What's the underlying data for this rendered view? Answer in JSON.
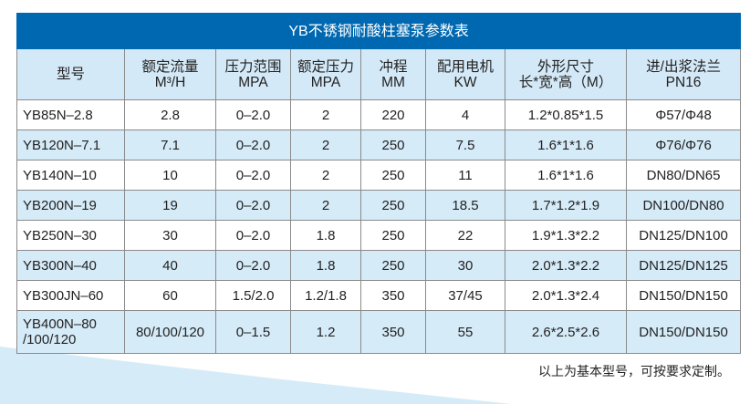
{
  "title": "YB不锈钢耐酸柱塞泵参数表",
  "colors": {
    "title_bg": "#0068b0",
    "header_bg": "#d4e9f7",
    "alt_row_bg": "#d6ebf8"
  },
  "headers": [
    [
      "型号"
    ],
    [
      "额定流量",
      "M³/H"
    ],
    [
      "压力范围",
      "MPA"
    ],
    [
      "额定压力",
      "MPA"
    ],
    [
      "冲程",
      "MM"
    ],
    [
      "配用电机",
      "KW"
    ],
    [
      "外形尺寸",
      "长*宽*高（M）"
    ],
    [
      "进/出浆法兰",
      "PN16"
    ]
  ],
  "rows": [
    [
      "YB85N–2.8",
      "2.8",
      "0–2.0",
      "2",
      "220",
      "4",
      "1.2*0.85*1.5",
      "Φ57/Φ48"
    ],
    [
      "YB120N–7.1",
      "7.1",
      "0–2.0",
      "2",
      "250",
      "7.5",
      "1.6*1*1.6",
      "Φ76/Φ76"
    ],
    [
      "YB140N–10",
      "10",
      "0–2.0",
      "2",
      "250",
      "11",
      "1.6*1*1.6",
      "DN80/DN65"
    ],
    [
      "YB200N–19",
      "19",
      "0–2.0",
      "2",
      "250",
      "18.5",
      "1.7*1.2*1.9",
      "DN100/DN80"
    ],
    [
      "YB250N–30",
      "30",
      "0–2.0",
      "1.8",
      "250",
      "22",
      "1.9*1.3*2.2",
      "DN125/DN100"
    ],
    [
      "YB300N–40",
      "40",
      "0–2.0",
      "1.8",
      "250",
      "30",
      "2.0*1.3*2.2",
      "DN125/DN125"
    ],
    [
      "YB300JN–60",
      "60",
      "1.5/2.0",
      "1.2/1.8",
      "350",
      "37/45",
      "2.0*1.3*2.4",
      "DN150/DN150"
    ],
    [
      "YB400N–80\n/100/120",
      "80/100/120",
      "0–1.5",
      "1.2",
      "350",
      "55",
      "2.6*2.5*2.6",
      "DN150/DN150"
    ]
  ],
  "note": "以上为基本型号，可按要求定制。"
}
